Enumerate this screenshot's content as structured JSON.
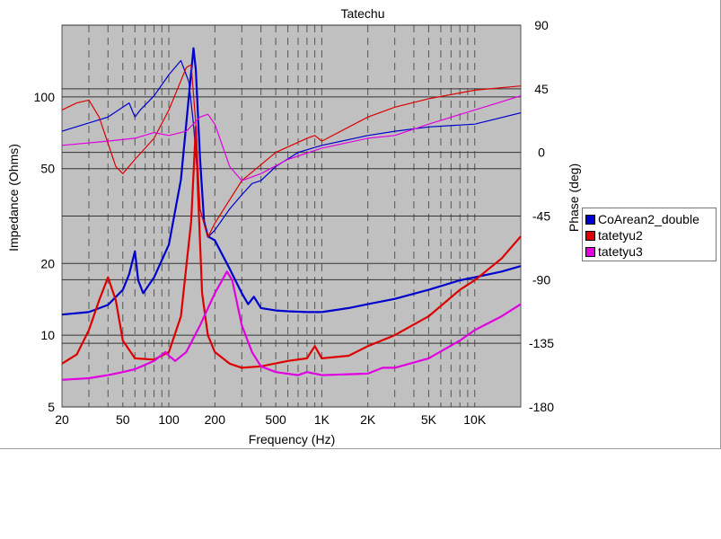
{
  "chart_data": {
    "type": "line",
    "title": "Tatechu",
    "xlabel": "Frequency (Hz)",
    "ylabel": "Impedance (Ohms)",
    "y2label": "Phase (deg)",
    "xscale": "log",
    "yscale": "log",
    "xlim": [
      20,
      20000
    ],
    "ylim": [
      5,
      200
    ],
    "y2lim": [
      -180,
      90
    ],
    "x_ticks": [
      {
        "value": 20,
        "label": "20"
      },
      {
        "value": 50,
        "label": "50"
      },
      {
        "value": 100,
        "label": "100"
      },
      {
        "value": 200,
        "label": "200"
      },
      {
        "value": 500,
        "label": "500"
      },
      {
        "value": 1000,
        "label": "1K"
      },
      {
        "value": 2000,
        "label": "2K"
      },
      {
        "value": 5000,
        "label": "5K"
      },
      {
        "value": 10000,
        "label": "10K"
      }
    ],
    "y_ticks": [
      {
        "value": 5,
        "label": "5"
      },
      {
        "value": 10,
        "label": "10"
      },
      {
        "value": 20,
        "label": "20"
      },
      {
        "value": 50,
        "label": "50"
      },
      {
        "value": 100,
        "label": "100"
      }
    ],
    "y2_ticks": [
      {
        "value": 90,
        "label": "90"
      },
      {
        "value": 45,
        "label": "45"
      },
      {
        "value": 0,
        "label": "0"
      },
      {
        "value": -45,
        "label": "-45"
      },
      {
        "value": -90,
        "label": "-90"
      },
      {
        "value": -135,
        "label": "-135"
      },
      {
        "value": -180,
        "label": "-180"
      }
    ],
    "grid": true,
    "legend_position": "right",
    "background_color": "#c0c0c0",
    "series": [
      {
        "name": "CoArean2_double",
        "color": "#0000cc",
        "impedance": [
          [
            20,
            12.2
          ],
          [
            30,
            12.5
          ],
          [
            40,
            13.4
          ],
          [
            50,
            15.5
          ],
          [
            55,
            18
          ],
          [
            60,
            22.5
          ],
          [
            63,
            17
          ],
          [
            68,
            15
          ],
          [
            80,
            17.5
          ],
          [
            100,
            24
          ],
          [
            120,
            45
          ],
          [
            135,
            100
          ],
          [
            145,
            160
          ],
          [
            150,
            130
          ],
          [
            160,
            55
          ],
          [
            170,
            30
          ],
          [
            180,
            26
          ],
          [
            200,
            25
          ],
          [
            250,
            19
          ],
          [
            300,
            15
          ],
          [
            330,
            13.5
          ],
          [
            360,
            14.5
          ],
          [
            400,
            13
          ],
          [
            500,
            12.7
          ],
          [
            600,
            12.6
          ],
          [
            800,
            12.5
          ],
          [
            1000,
            12.5
          ],
          [
            1500,
            13
          ],
          [
            2000,
            13.5
          ],
          [
            3000,
            14.2
          ],
          [
            5000,
            15.5
          ],
          [
            8000,
            17
          ],
          [
            10000,
            17.5
          ],
          [
            15000,
            18.5
          ],
          [
            20000,
            19.5
          ]
        ],
        "phase": [
          [
            20,
            15
          ],
          [
            40,
            25
          ],
          [
            55,
            35
          ],
          [
            60,
            25
          ],
          [
            65,
            30
          ],
          [
            80,
            40
          ],
          [
            100,
            55
          ],
          [
            120,
            65
          ],
          [
            135,
            50
          ],
          [
            145,
            20
          ],
          [
            160,
            -40
          ],
          [
            180,
            -60
          ],
          [
            200,
            -55
          ],
          [
            250,
            -40
          ],
          [
            300,
            -30
          ],
          [
            350,
            -22
          ],
          [
            400,
            -20
          ],
          [
            500,
            -10
          ],
          [
            700,
            0
          ],
          [
            1000,
            5
          ],
          [
            2000,
            12
          ],
          [
            3000,
            15
          ],
          [
            5000,
            18
          ],
          [
            10000,
            20
          ],
          [
            20000,
            28
          ]
        ]
      },
      {
        "name": "tatetyu2",
        "color": "#dd0000",
        "impedance": [
          [
            20,
            7.6
          ],
          [
            25,
            8.3
          ],
          [
            30,
            10.5
          ],
          [
            35,
            14
          ],
          [
            40,
            17.5
          ],
          [
            45,
            14
          ],
          [
            50,
            9.5
          ],
          [
            60,
            8
          ],
          [
            80,
            7.9
          ],
          [
            100,
            8.5
          ],
          [
            120,
            12
          ],
          [
            140,
            30
          ],
          [
            150,
            75
          ],
          [
            155,
            40
          ],
          [
            165,
            15
          ],
          [
            180,
            10
          ],
          [
            200,
            8.5
          ],
          [
            250,
            7.6
          ],
          [
            300,
            7.3
          ],
          [
            400,
            7.4
          ],
          [
            600,
            7.8
          ],
          [
            800,
            8
          ],
          [
            900,
            9
          ],
          [
            1000,
            8
          ],
          [
            1500,
            8.2
          ],
          [
            2000,
            9
          ],
          [
            3000,
            10
          ],
          [
            5000,
            12
          ],
          [
            8000,
            15.5
          ],
          [
            10000,
            17
          ],
          [
            15000,
            21
          ],
          [
            20000,
            26
          ]
        ],
        "phase": [
          [
            20,
            30
          ],
          [
            25,
            35
          ],
          [
            30,
            37
          ],
          [
            35,
            25
          ],
          [
            45,
            -10
          ],
          [
            50,
            -15
          ],
          [
            60,
            -5
          ],
          [
            80,
            10
          ],
          [
            100,
            30
          ],
          [
            130,
            60
          ],
          [
            140,
            62
          ],
          [
            150,
            20
          ],
          [
            160,
            -40
          ],
          [
            180,
            -60
          ],
          [
            200,
            -50
          ],
          [
            300,
            -20
          ],
          [
            500,
            0
          ],
          [
            800,
            10
          ],
          [
            900,
            12
          ],
          [
            1000,
            8
          ],
          [
            2000,
            25
          ],
          [
            3000,
            32
          ],
          [
            5000,
            38
          ],
          [
            10000,
            44
          ],
          [
            20000,
            47
          ]
        ]
      },
      {
        "name": "tatetyu3",
        "color": "#e000e0",
        "impedance": [
          [
            20,
            6.5
          ],
          [
            30,
            6.6
          ],
          [
            40,
            6.8
          ],
          [
            50,
            7.0
          ],
          [
            60,
            7.2
          ],
          [
            80,
            7.8
          ],
          [
            95,
            8.5
          ],
          [
            100,
            8.2
          ],
          [
            110,
            7.8
          ],
          [
            130,
            8.5
          ],
          [
            160,
            11
          ],
          [
            200,
            15
          ],
          [
            240,
            18.5
          ],
          [
            260,
            17
          ],
          [
            300,
            11
          ],
          [
            350,
            8.5
          ],
          [
            400,
            7.4
          ],
          [
            500,
            7.0
          ],
          [
            700,
            6.8
          ],
          [
            800,
            7
          ],
          [
            1000,
            6.8
          ],
          [
            2000,
            6.9
          ],
          [
            2500,
            7.3
          ],
          [
            3000,
            7.3
          ],
          [
            5000,
            8
          ],
          [
            8000,
            9.5
          ],
          [
            10000,
            10.5
          ],
          [
            15000,
            12
          ],
          [
            20000,
            13.5
          ]
        ],
        "phase": [
          [
            20,
            5
          ],
          [
            40,
            8
          ],
          [
            60,
            10
          ],
          [
            80,
            14
          ],
          [
            100,
            12
          ],
          [
            130,
            15
          ],
          [
            160,
            25
          ],
          [
            180,
            27
          ],
          [
            200,
            20
          ],
          [
            250,
            -10
          ],
          [
            300,
            -20
          ],
          [
            400,
            -15
          ],
          [
            600,
            -5
          ],
          [
            1000,
            3
          ],
          [
            2000,
            10
          ],
          [
            3000,
            12
          ],
          [
            5000,
            20
          ],
          [
            10000,
            30
          ],
          [
            20000,
            40
          ]
        ]
      }
    ]
  }
}
